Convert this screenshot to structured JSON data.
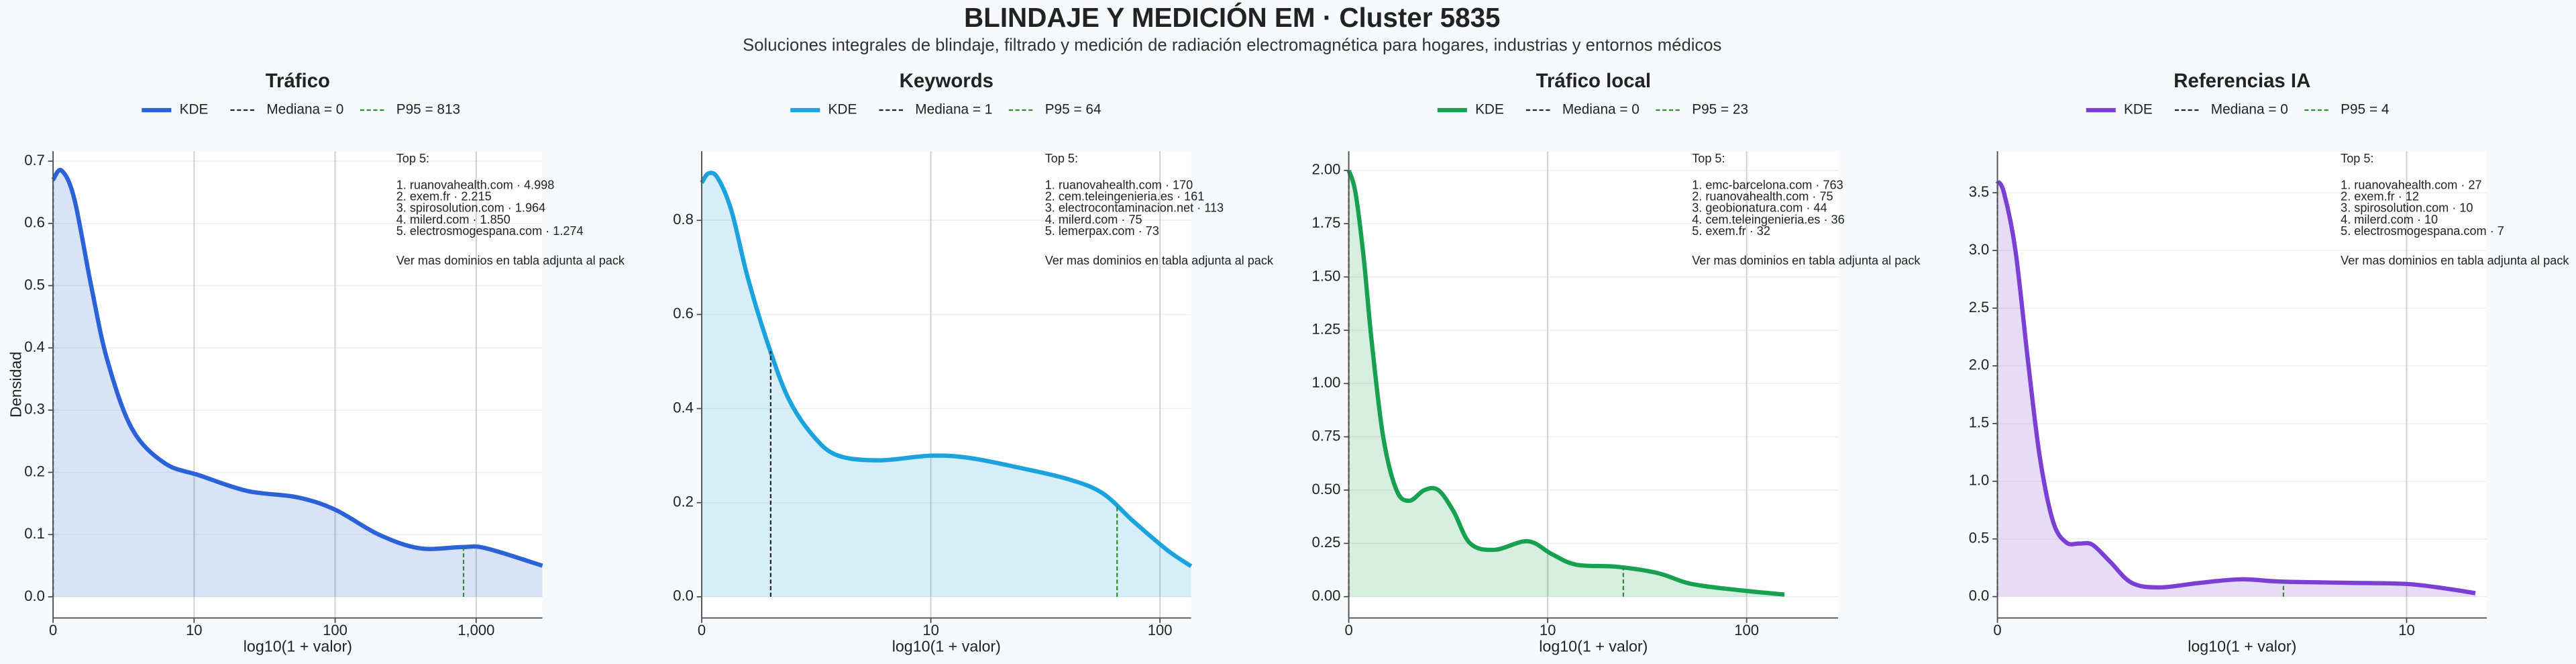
{
  "title": "BLINDAJE Y MEDICIÓN EM · Cluster 5835",
  "subtitle": "Soluciones integrales de blindaje, filtrado y medición de radiación electromagnética para hogares, industrias y entornos médicos",
  "chart_data": [
    {
      "type": "line",
      "title": "Tráfico",
      "xlabel": "log10(1 + valor)",
      "ylabel": "Densidad",
      "xlim": [
        0,
        3.47
      ],
      "xticks": [
        0,
        {
          "value": 1,
          "label": "10"
        },
        {
          "value": 2,
          "label": "100"
        },
        {
          "value": 3,
          "label": "1,000"
        }
      ],
      "ylim": [
        -0.034,
        0.716
      ],
      "yticks": [
        {
          "value": 0,
          "label": "0.0"
        },
        0.1,
        0.2,
        0.3,
        0.4,
        0.5,
        0.6,
        0.7
      ],
      "grid": true,
      "x": [
        0,
        0.06,
        0.15,
        0.27,
        0.385,
        0.56,
        0.79,
        1.04,
        1.38,
        1.73,
        2.0,
        2.31,
        2.6,
        2.9,
        3.07,
        3.47
      ],
      "series": [
        {
          "name": "KDE",
          "color": "#2b62d8",
          "values": [
            0.67,
            0.685,
            0.64,
            0.5,
            0.38,
            0.27,
            0.215,
            0.195,
            0.17,
            0.16,
            0.14,
            0.1,
            0.078,
            0.08,
            0.078,
            0.05
          ]
        }
      ],
      "reference_lines": [
        {
          "name": "Mediana = 0",
          "value": 0,
          "color": "#222222"
        },
        {
          "name": "P95 = 813",
          "value": 813,
          "color": "#2e8b2e"
        }
      ],
      "annotation": {
        "title": "Top 5:",
        "lines": [
          "1. ruanovahealth.com · 4.998",
          "2. exem.fr · 2.215",
          "3. spirosolution.com · 1.964",
          "4. milerd.com · 1.850",
          "5. electrosmogespana.com · 1.274"
        ],
        "note": "Ver mas dominios en tabla adjunta al pack"
      }
    },
    {
      "type": "line",
      "title": "Keywords",
      "xlabel": "log10(1 + valor)",
      "xlim": [
        0,
        2.136
      ],
      "xticks": [
        0,
        {
          "value": 1,
          "label": "10"
        },
        {
          "value": 2,
          "label": "100"
        }
      ],
      "ylim": [
        -0.045,
        0.947
      ],
      "yticks": [
        {
          "value": 0,
          "label": "0.0"
        },
        0.2,
        0.4,
        0.6,
        0.8
      ],
      "grid": true,
      "x": [
        0,
        0.03,
        0.07,
        0.13,
        0.2,
        0.287,
        0.38,
        0.49,
        0.595,
        0.774,
        1.0,
        1.17,
        1.38,
        1.6,
        1.75,
        1.885,
        2.03,
        2.136
      ],
      "series": [
        {
          "name": "KDE",
          "color": "#1ca3dd",
          "values": [
            0.88,
            0.9,
            0.89,
            0.82,
            0.68,
            0.54,
            0.42,
            0.34,
            0.3,
            0.29,
            0.3,
            0.295,
            0.275,
            0.25,
            0.22,
            0.16,
            0.1,
            0.065
          ]
        }
      ],
      "reference_lines": [
        {
          "name": "Mediana = 1",
          "value": 1,
          "color": "#222222"
        },
        {
          "name": "P95 = 64",
          "value": 64,
          "color": "#2e8b2e"
        }
      ],
      "annotation": {
        "title": "Top 5:",
        "lines": [
          "1. ruanovahealth.com · 170",
          "2. cem.teleingenieria.es · 161",
          "3. electrocontaminacion.net · 113",
          "4. milerd.com · 75",
          "5. lemerpax.com · 73"
        ],
        "note": "Ver mas dominios en tabla adjunta al pack"
      }
    },
    {
      "type": "line",
      "title": "Tráfico local",
      "xlabel": "log10(1 + valor)",
      "xlim": [
        0,
        2.46
      ],
      "xticks": [
        0,
        {
          "value": 1,
          "label": "10"
        },
        {
          "value": 2,
          "label": "100"
        }
      ],
      "ylim": [
        -0.1,
        2.09
      ],
      "yticks": [
        {
          "value": 0,
          "label": "0.00"
        },
        0.25,
        {
          "value": 0.5,
          "label": "0.50"
        },
        0.75,
        {
          "value": 1,
          "label": "1.00"
        },
        1.25,
        {
          "value": 1.5,
          "label": "1.50"
        },
        1.75,
        {
          "value": 2,
          "label": "2.00"
        }
      ],
      "grid": true,
      "x": [
        0,
        0.033,
        0.074,
        0.115,
        0.173,
        0.24,
        0.305,
        0.38,
        0.45,
        0.527,
        0.61,
        0.733,
        0.9,
        1.02,
        1.144,
        1.35,
        1.556,
        1.72,
        1.967,
        2.19
      ],
      "series": [
        {
          "name": "KDE",
          "color": "#16a050",
          "values": [
            2.0,
            1.9,
            1.6,
            1.2,
            0.75,
            0.5,
            0.45,
            0.5,
            0.5,
            0.4,
            0.25,
            0.22,
            0.26,
            0.2,
            0.15,
            0.14,
            0.11,
            0.06,
            0.03,
            0.01
          ]
        }
      ],
      "reference_lines": [
        {
          "name": "Mediana = 0",
          "value": 0,
          "color": "#222222"
        },
        {
          "name": "P95 = 23",
          "value": 23,
          "color": "#2e8b2e"
        }
      ],
      "annotation": {
        "title": "Top 5:",
        "lines": [
          "1. emc-barcelona.com · 763",
          "2. ruanovahealth.com · 75",
          "3. geobionatura.com · 44",
          "4. cem.teleingenieria.es · 36",
          "5. exem.fr · 32"
        ],
        "note": "Ver mas dominios en tabla adjunta al pack"
      }
    },
    {
      "type": "line",
      "title": "Referencias IA",
      "xlabel": "log10(1 + valor)",
      "xlim": [
        0,
        1.196
      ],
      "xticks": [
        0,
        {
          "value": 1,
          "label": "10"
        }
      ],
      "ylim": [
        -0.185,
        3.86
      ],
      "yticks": [
        {
          "value": 0,
          "label": "0.0"
        },
        0.5,
        {
          "value": 1,
          "label": "1.0"
        },
        1.5,
        {
          "value": 2,
          "label": "2.0"
        },
        2.5,
        {
          "value": 3,
          "label": "3.0"
        },
        3.5
      ],
      "grid": true,
      "x": [
        0,
        0.016,
        0.044,
        0.076,
        0.104,
        0.136,
        0.168,
        0.2,
        0.232,
        0.276,
        0.328,
        0.396,
        0.496,
        0.596,
        0.696,
        0.856,
        1.0,
        1.096,
        1.168
      ],
      "series": [
        {
          "name": "KDE",
          "color": "#7b3fd6",
          "values": [
            3.6,
            3.5,
            3.0,
            2.0,
            1.2,
            0.65,
            0.47,
            0.46,
            0.45,
            0.3,
            0.12,
            0.08,
            0.12,
            0.15,
            0.13,
            0.12,
            0.11,
            0.07,
            0.03
          ]
        }
      ],
      "reference_lines": [
        {
          "name": "Mediana = 0",
          "value": 0,
          "color": "#222222"
        },
        {
          "name": "P95 = 4",
          "value": 4,
          "color": "#2e8b2e"
        }
      ],
      "annotation": {
        "title": "Top 5:",
        "lines": [
          "1. ruanovahealth.com · 27",
          "2. exem.fr · 12",
          "3. spirosolution.com · 10",
          "4. milerd.com · 10",
          "5. electrosmogespana.com · 7"
        ],
        "note": "Ver mas dominios en tabla adjunta al pack"
      }
    }
  ]
}
